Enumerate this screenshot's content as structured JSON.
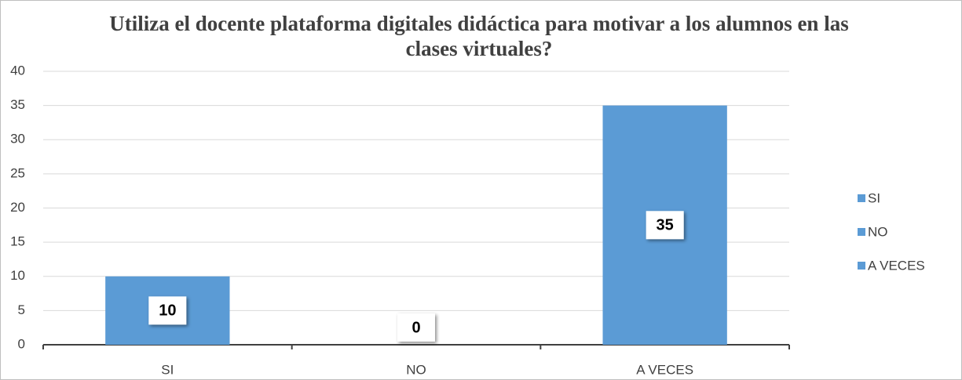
{
  "chart_data": {
    "type": "bar",
    "title": "Utiliza el docente plataforma digitales didáctica para motivar a los alumnos en las clases virtuales?",
    "categories": [
      "SI",
      "NO",
      "A VECES"
    ],
    "values": [
      10,
      0,
      35
    ],
    "color": "#5b9bd5",
    "ylim": [
      0,
      40
    ],
    "yticks": [
      0,
      5,
      10,
      15,
      20,
      25,
      30,
      35,
      40
    ],
    "grid": true,
    "legend": "right"
  }
}
